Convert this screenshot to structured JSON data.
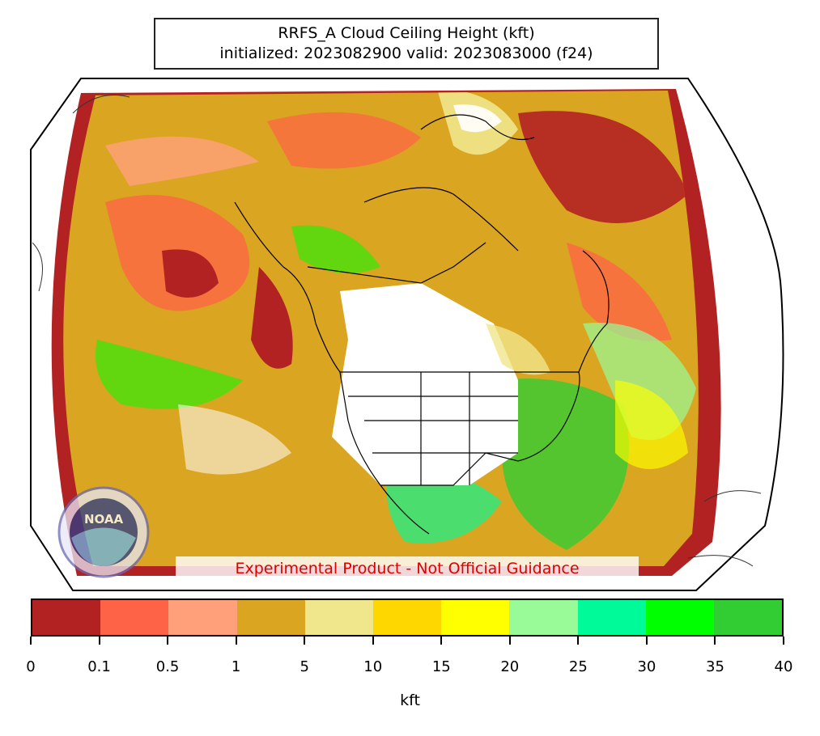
{
  "title": {
    "line1": "RRFS_A Cloud Ceiling Height (kft)",
    "line2": "initialized: 2023082900 valid: 2023083000 (f24)"
  },
  "disclaimer": "Experimental Product - Not Official Guidance",
  "logo": {
    "name": "noaa-logo",
    "text": "NOAA"
  },
  "colorbar": {
    "label": "kft",
    "boundaries": [
      "0",
      "0.1",
      "0.5",
      "1",
      "5",
      "10",
      "15",
      "20",
      "25",
      "30",
      "35",
      "40"
    ],
    "colors": [
      "#b22222",
      "#ff6347",
      "#ffa07a",
      "#daa520",
      "#f0e68c",
      "#ffd700",
      "#ffff00",
      "#98fb98",
      "#00fa9a",
      "#00ff00",
      "#32cd32"
    ]
  },
  "colors": {
    "ocean_fill": "#daa520",
    "edge_band": "#b22222",
    "land_clear": "#ffffff",
    "coastline": "#000000"
  }
}
